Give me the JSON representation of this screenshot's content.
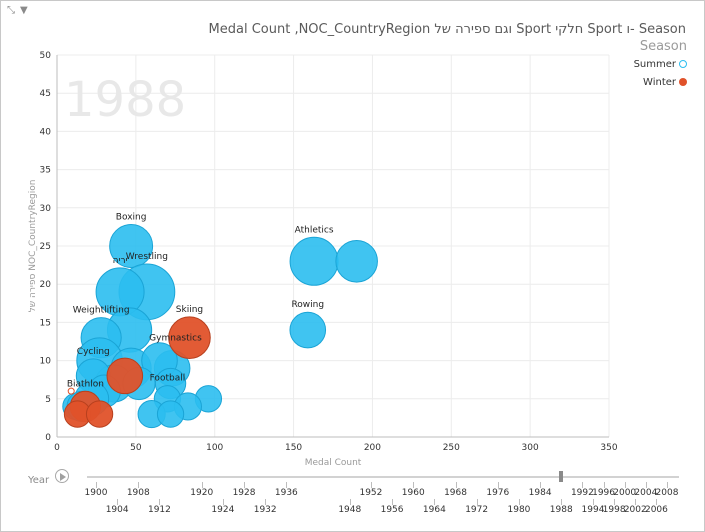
{
  "title": "Season -ו Sport חלקי Sport וגם ספירה של Medal Count ,NOC_CountryRegion",
  "icons": {
    "expand": "expand-icon",
    "filter": "filter-icon",
    "play": "play-icon"
  },
  "legend": {
    "title": "Season",
    "items": [
      {
        "label": "Summer",
        "color": "#2BBEF0",
        "style": "hollow"
      },
      {
        "label": "Winter",
        "color": "#E0522A",
        "style": "filled"
      }
    ]
  },
  "play_axis": {
    "label": "Year",
    "current_year": 1988,
    "years_row1": [
      "1900",
      "1908",
      "1920",
      "1928",
      "1936",
      "1952",
      "1960",
      "1968",
      "1976",
      "1984",
      "1992",
      "1996",
      "2000",
      "2004",
      "2008"
    ],
    "years_row2": [
      "1904",
      "1912",
      "1924",
      "1932",
      "1948",
      "1956",
      "1964",
      "1972",
      "1980",
      "1988",
      "1994",
      "1998",
      "2002",
      "2006"
    ]
  },
  "chart_data": {
    "type": "scatter",
    "title": "Season -ו Sport חלקי Sport וגם ספירה של Medal Count ,NOC_CountryRegion",
    "watermark": "1988",
    "xlabel": "Medal Count",
    "ylabel": "ספירה של NOC_CountryRegion",
    "xlim": [
      0,
      350
    ],
    "ylim": [
      0,
      50
    ],
    "xticks": [
      "0",
      "50",
      "100",
      "150",
      "200",
      "250",
      "300",
      "350"
    ],
    "yticks": [
      "0",
      "5",
      "10",
      "15",
      "20",
      "25",
      "30",
      "35",
      "40",
      "45",
      "50"
    ],
    "grid": true,
    "legend_position": "top-right",
    "series": [
      {
        "name": "Summer",
        "color": "#2BBEF0",
        "points": [
          {
            "x": 163,
            "y": 23,
            "size": 1.0,
            "label": "Athletics"
          },
          {
            "x": 190,
            "y": 23,
            "size": 0.75
          },
          {
            "x": 159,
            "y": 14,
            "size": 0.55,
            "label": "Rowing"
          },
          {
            "x": 47,
            "y": 25,
            "size": 0.8,
            "label": "Boxing"
          },
          {
            "x": 57,
            "y": 19,
            "size": 1.35,
            "label": "Wrestling"
          },
          {
            "x": 40,
            "y": 19,
            "size": 1.0,
            "label": "יריה"
          },
          {
            "x": 46,
            "y": 14,
            "size": 0.85
          },
          {
            "x": 28,
            "y": 13,
            "size": 0.7,
            "label": "Weightlifting"
          },
          {
            "x": 27,
            "y": 10,
            "size": 0.9
          },
          {
            "x": 47,
            "y": 9,
            "size": 0.7
          },
          {
            "x": 73,
            "y": 9,
            "size": 0.55
          },
          {
            "x": 65,
            "y": 10,
            "size": 0.55
          },
          {
            "x": 36,
            "y": 7,
            "size": 0.6
          },
          {
            "x": 72,
            "y": 7,
            "size": 0.4
          },
          {
            "x": 52,
            "y": 7,
            "size": 0.45
          },
          {
            "x": 23,
            "y": 8,
            "size": 0.5,
            "label": "Cycling"
          },
          {
            "x": 30,
            "y": 6,
            "size": 0.45
          },
          {
            "x": 12,
            "y": 4,
            "size": 0.3
          },
          {
            "x": 22,
            "y": 5,
            "size": 0.5
          },
          {
            "x": 16,
            "y": 4,
            "size": 0.4
          },
          {
            "x": 70,
            "y": 5,
            "size": 0.3,
            "label": "Football"
          },
          {
            "x": 96,
            "y": 5,
            "size": 0.3
          },
          {
            "x": 83,
            "y": 4,
            "size": 0.32
          },
          {
            "x": 60,
            "y": 3,
            "size": 0.32
          },
          {
            "x": 72,
            "y": 3,
            "size": 0.3
          }
        ]
      },
      {
        "name": "Winter",
        "color": "#E0522A",
        "points": [
          {
            "x": 84,
            "y": 13,
            "size": 0.75,
            "label": "Skiing",
            "label2": "Gymnastics"
          },
          {
            "x": 43,
            "y": 8,
            "size": 0.55
          },
          {
            "x": 18,
            "y": 4,
            "size": 0.4,
            "label": "Biathlon"
          },
          {
            "x": 13,
            "y": 3,
            "size": 0.3
          },
          {
            "x": 27,
            "y": 3,
            "size": 0.3
          },
          {
            "x": 9,
            "y": 6,
            "size": 0.1,
            "hollow": true
          }
        ]
      }
    ]
  }
}
